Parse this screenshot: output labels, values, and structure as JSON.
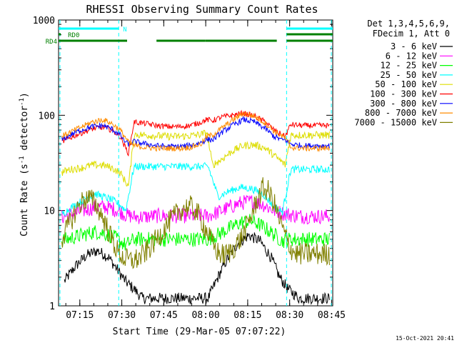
{
  "chart_data": {
    "type": "line",
    "title": "RHESSI Observing Summary Count Rates",
    "xlabel": "Start Time (29-Mar-05 07:07:22)",
    "ylabel_main": "Count Rate (s",
    "ylabel_sup1": "-1",
    "ylabel_mid": " detector",
    "ylabel_sup2": "-1",
    "ylabel_end": ")",
    "y_scale": "log",
    "ylim": [
      1,
      1000
    ],
    "xlim_minutes": [
      0,
      98
    ],
    "x_ticks": [
      {
        "label": "07:15",
        "value": 7.6
      },
      {
        "label": "07:30",
        "value": 22.6
      },
      {
        "label": "07:45",
        "value": 37.6
      },
      {
        "label": "08:00",
        "value": 52.6
      },
      {
        "label": "08:15",
        "value": 67.6
      },
      {
        "label": "08:30",
        "value": 82.6
      },
      {
        "label": "08:45",
        "value": 97.6
      }
    ],
    "y_ticks": [
      {
        "label": "1",
        "value": 1
      },
      {
        "label": "10",
        "value": 10
      },
      {
        "label": "100",
        "value": 100
      },
      {
        "label": "1000",
        "value": 1000
      }
    ],
    "legend": {
      "position": "right",
      "header1": "Det 1,3,4,5,6,9,",
      "header2": "FDecim 1, Att 0"
    },
    "series": [
      {
        "name": "3 - 6 keV",
        "color": "#000000",
        "x": [
          2,
          6,
          10,
          14,
          18,
          21,
          24,
          27,
          30,
          34,
          38,
          42,
          46,
          50,
          53.5,
          57,
          60,
          64,
          68,
          72,
          76,
          79,
          82,
          86,
          90,
          94,
          97
        ],
        "y": [
          1.8,
          2.6,
          3.4,
          3.8,
          3.2,
          2.4,
          1.8,
          1.5,
          1.2,
          1.2,
          1.2,
          1.2,
          1.2,
          1.2,
          1.2,
          2,
          3,
          4.5,
          5.5,
          4.8,
          3.2,
          2,
          1.5,
          1.2,
          1.2,
          1.2,
          1.2
        ]
      },
      {
        "name": "6 - 12 keV",
        "color": "#ff00ff",
        "x": [
          1,
          5,
          9,
          13,
          16,
          19,
          22,
          24,
          27,
          31,
          35,
          39,
          43,
          47,
          51,
          53.5,
          57,
          61,
          65,
          69,
          73,
          77,
          80,
          83,
          87,
          91,
          95,
          97
        ],
        "y": [
          8.5,
          9.2,
          10,
          10.8,
          11,
          10.5,
          9.8,
          9,
          8.6,
          8.6,
          8.8,
          8.8,
          8.8,
          8.8,
          8.8,
          8.8,
          9.6,
          10.8,
          12,
          12.5,
          11.6,
          10,
          9.4,
          9,
          8.7,
          8.7,
          8.7,
          8.7
        ]
      },
      {
        "name": "12 - 25 keV",
        "color": "#00ff00",
        "x": [
          1,
          5,
          9,
          13,
          16,
          19,
          22,
          24,
          27,
          31,
          35,
          39,
          43,
          47,
          51,
          53.5,
          57,
          61,
          65,
          69,
          73,
          77,
          80,
          83,
          87,
          91,
          95,
          97
        ],
        "y": [
          4.8,
          5.2,
          5.6,
          6,
          5.8,
          5.4,
          4.8,
          4.3,
          5,
          5,
          5,
          5,
          5,
          5,
          5,
          5,
          5.6,
          6.5,
          7.5,
          7.8,
          6.8,
          5.6,
          4.8,
          5,
          5,
          5,
          5,
          5
        ]
      },
      {
        "name": "25 - 50 keV",
        "color": "#00ffff",
        "x": [
          1,
          4,
          7,
          10,
          13,
          16,
          19,
          22,
          24,
          27,
          31,
          35,
          39,
          43,
          47,
          51,
          53.5,
          57,
          61,
          65,
          69,
          73,
          77,
          80,
          83,
          87,
          91,
          95,
          97
        ],
        "y": [
          9,
          10.5,
          12,
          13.5,
          15,
          14,
          13,
          11.5,
          10,
          29,
          29,
          29,
          29,
          29,
          29,
          29,
          29,
          14,
          16,
          17.5,
          17,
          15,
          11,
          9.6,
          27,
          27,
          27,
          27,
          27
        ]
      },
      {
        "name": "50 - 100 keV",
        "color": "#dddd00",
        "x": [
          1,
          4,
          8,
          12,
          16,
          19,
          22,
          24,
          25,
          27,
          31,
          35,
          39,
          43,
          47,
          51,
          53,
          55,
          58,
          62,
          66,
          70,
          74,
          77,
          80,
          81,
          83,
          87,
          91,
          95,
          97
        ],
        "y": [
          25,
          27,
          28,
          30,
          30,
          28,
          25,
          20,
          18,
          63,
          62,
          61,
          60,
          60,
          61,
          63,
          66,
          30,
          34,
          42,
          48,
          49,
          45,
          38,
          32,
          30,
          62,
          62,
          62,
          62,
          62
        ]
      },
      {
        "name": "100 - 300 keV",
        "color": "#ff0000",
        "x": [
          1,
          4,
          8,
          12,
          16,
          19,
          22,
          24,
          25,
          27,
          31,
          35,
          39,
          43,
          47,
          51,
          53,
          55,
          58,
          62,
          66,
          70,
          74,
          77,
          80,
          81,
          83,
          87,
          91,
          95,
          97
        ],
        "y": [
          52,
          58,
          65,
          72,
          75,
          70,
          60,
          45,
          40,
          85,
          82,
          78,
          76,
          76,
          78,
          85,
          90,
          88,
          95,
          100,
          105,
          98,
          85,
          70,
          62,
          60,
          80,
          78,
          78,
          78,
          78
        ]
      },
      {
        "name": "300 - 800 keV",
        "color": "#0000ff",
        "x": [
          1,
          4,
          8,
          12,
          16,
          19,
          22,
          24,
          25,
          27,
          31,
          35,
          39,
          43,
          47,
          51,
          53,
          55,
          58,
          62,
          66,
          70,
          74,
          77,
          80,
          81,
          83,
          87,
          91,
          95,
          97
        ],
        "y": [
          55,
          62,
          70,
          76,
          78,
          72,
          62,
          52,
          50,
          53,
          50,
          48,
          47,
          47,
          48,
          52,
          56,
          55,
          65,
          78,
          90,
          85,
          72,
          60,
          55,
          55,
          50,
          48,
          48,
          48,
          48
        ]
      },
      {
        "name": "800 - 7000 keV",
        "color": "#ff8c00",
        "x": [
          1,
          4,
          8,
          12,
          16,
          19,
          22,
          24,
          25,
          27,
          31,
          35,
          39,
          43,
          47,
          51,
          53,
          55,
          58,
          62,
          66,
          70,
          74,
          77,
          80,
          81,
          83,
          87,
          91,
          95,
          97
        ],
        "y": [
          60,
          66,
          75,
          85,
          90,
          82,
          70,
          58,
          52,
          48,
          46,
          45,
          45,
          45,
          46,
          50,
          60,
          62,
          72,
          88,
          105,
          98,
          82,
          68,
          60,
          58,
          46,
          45,
          45,
          45,
          45
        ]
      },
      {
        "name": "7000 - 15000 keV",
        "color": "#808000",
        "x": [
          1,
          3,
          5,
          7,
          9,
          11,
          13,
          15,
          17,
          19,
          21,
          23,
          25,
          27,
          29,
          31,
          33,
          35,
          37,
          39,
          41,
          43,
          45,
          47,
          49,
          51,
          53,
          55,
          57,
          59,
          61,
          63,
          65,
          67,
          69,
          71,
          73,
          75,
          77,
          79,
          81,
          83,
          85,
          87,
          89,
          91,
          93,
          95,
          97
        ],
        "y": [
          5,
          6.5,
          8.5,
          11,
          13,
          13.5,
          12,
          9.5,
          7,
          5,
          3.8,
          3.2,
          3,
          3,
          3.2,
          3.6,
          4.2,
          5,
          6,
          7.2,
          8.5,
          9.8,
          10.8,
          11,
          10,
          8,
          6,
          4.5,
          3.6,
          3.4,
          3.6,
          4.2,
          5,
          6.5,
          9,
          13,
          17,
          16,
          12,
          8,
          5.5,
          4,
          3.5,
          3.5,
          3.5,
          3.5,
          3.5,
          3.5,
          3.5
        ]
      }
    ],
    "attenuator_bars": [
      {
        "label": "N",
        "color": "#00ffff",
        "segments": [
          [
            0,
            21.5
          ],
          [
            81.5,
            98
          ]
        ]
      },
      {
        "label": "RD0",
        "color": "#008000",
        "segments": [
          [
            0,
            0.8
          ],
          [
            81.5,
            98
          ]
        ]
      },
      {
        "label": "RD4",
        "color": "#008000",
        "segments": [
          [
            0,
            24.5
          ],
          [
            35,
            52.5
          ],
          [
            52.5,
            78
          ],
          [
            81.5,
            98
          ]
        ]
      }
    ],
    "saa_lines": {
      "color": "#00ffff",
      "x": [
        0.5,
        21.5,
        81.5,
        97.5
      ]
    },
    "timestamp": "15-Oct-2021 20:41"
  }
}
